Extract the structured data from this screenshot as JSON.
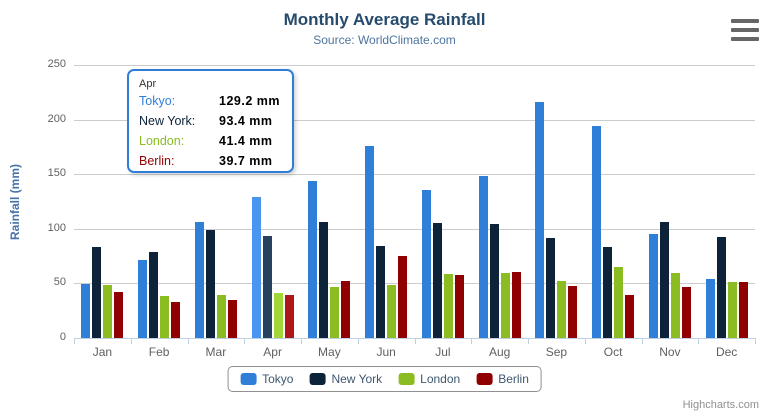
{
  "header": {
    "title": "Monthly Average Rainfall",
    "subtitle": "Source: WorldClimate.com"
  },
  "axes": {
    "y_title": "Rainfall (mm)"
  },
  "icons": {
    "export_menu": "hamburger-icon"
  },
  "colors": {
    "title": "#274b6d",
    "subtitle": "#4d759e",
    "gridline": "#cccccc",
    "axis_line": "#c0d0e0",
    "axis_labels": "#606060",
    "y_axis_title": "#4572a7",
    "legend_text": "#3e576f",
    "tooltip_border": "#2f7ed8"
  },
  "chart_data": {
    "type": "bar",
    "title": "Monthly Average Rainfall",
    "subtitle": "Source: WorldClimate.com",
    "xlabel": "",
    "ylabel": "Rainfall (mm)",
    "ylim": [
      0,
      250
    ],
    "y_ticks": [
      0,
      50,
      100,
      150,
      200,
      250
    ],
    "grid": true,
    "legend_position": "bottom",
    "categories": [
      "Jan",
      "Feb",
      "Mar",
      "Apr",
      "May",
      "Jun",
      "Jul",
      "Aug",
      "Sep",
      "Oct",
      "Nov",
      "Dec"
    ],
    "highlighted_category": "Apr",
    "series": [
      {
        "name": "Tokyo",
        "color": "#2f7ed8",
        "hover_color": "#4a95f0",
        "values": [
          49.9,
          71.5,
          106.4,
          129.2,
          144.0,
          176.0,
          135.6,
          148.5,
          216.4,
          194.1,
          95.6,
          54.4
        ]
      },
      {
        "name": "New York",
        "color": "#0d233a",
        "hover_color": "#26425e",
        "values": [
          83.6,
          78.8,
          98.5,
          93.4,
          106.0,
          84.5,
          105.0,
          104.3,
          91.2,
          83.5,
          106.6,
          92.3
        ]
      },
      {
        "name": "London",
        "color": "#8bbc21",
        "hover_color": "#a2d538",
        "values": [
          48.9,
          38.8,
          39.3,
          41.4,
          47.0,
          48.3,
          59.0,
          59.6,
          52.4,
          65.2,
          59.3,
          51.2
        ]
      },
      {
        "name": "Berlin",
        "color": "#910000",
        "hover_color": "#ad1717",
        "values": [
          42.4,
          33.2,
          34.5,
          39.7,
          52.6,
          75.5,
          57.4,
          60.4,
          47.6,
          39.1,
          46.8,
          51.1
        ]
      }
    ]
  },
  "tooltip": {
    "header": "Apr",
    "rows": [
      {
        "label": "Tokyo:",
        "value": "129.2 mm",
        "color": "#2f7ed8"
      },
      {
        "label": "New York:",
        "value": "93.4 mm",
        "color": "#0d233a"
      },
      {
        "label": "London:",
        "value": "41.4 mm",
        "color": "#8bbc21"
      },
      {
        "label": "Berlin:",
        "value": "39.7 mm",
        "color": "#910000"
      }
    ]
  },
  "footer": {
    "credits": "Highcharts.com"
  }
}
